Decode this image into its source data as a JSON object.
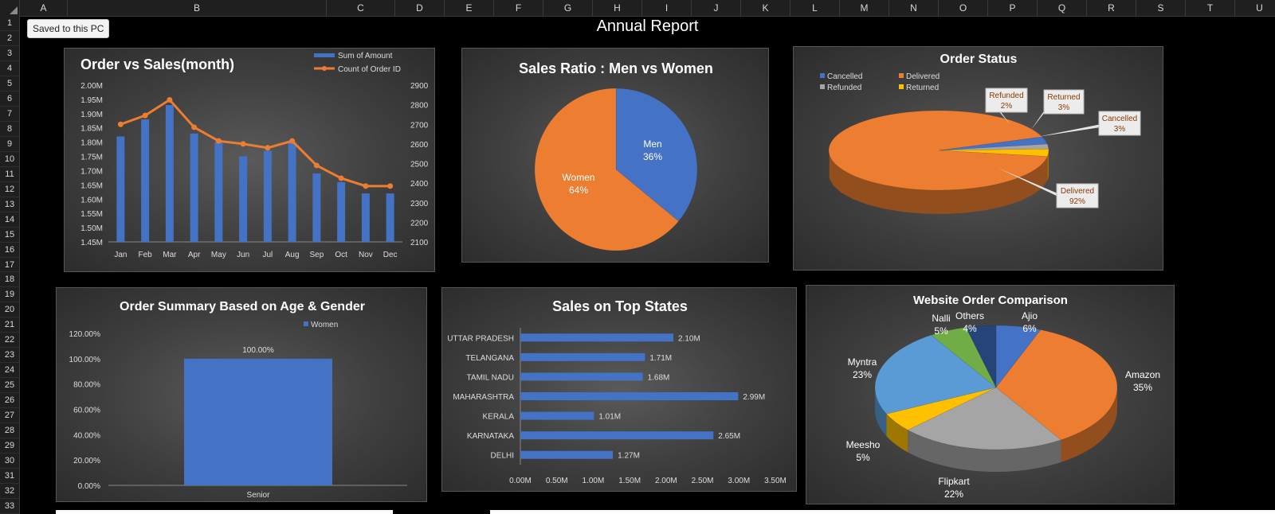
{
  "app": {
    "toast": "Saved to this PC",
    "sheet_title": "Annual Report",
    "columns": [
      "A",
      "B",
      "C",
      "D",
      "E",
      "F",
      "G",
      "H",
      "I",
      "J",
      "K",
      "L",
      "M",
      "N",
      "O",
      "P",
      "Q",
      "R",
      "S",
      "T",
      "U"
    ],
    "rows": [
      "1",
      "2",
      "3",
      "4",
      "5",
      "6",
      "7",
      "8",
      "9",
      "10",
      "11",
      "12",
      "13",
      "14",
      "15",
      "16",
      "17",
      "18",
      "19",
      "20",
      "21",
      "22",
      "23",
      "24",
      "25",
      "26",
      "27",
      "28",
      "29",
      "30",
      "31",
      "32",
      "33"
    ]
  },
  "chart_data": [
    {
      "id": "order-vs-sales",
      "type": "bar+line",
      "title": "Order vs Sales(month)",
      "categories": [
        "Jan",
        "Feb",
        "Mar",
        "Apr",
        "May",
        "Jun",
        "Jul",
        "Aug",
        "Sep",
        "Oct",
        "Nov",
        "Dec"
      ],
      "series": [
        {
          "name": "Sum of Amount",
          "type": "bar",
          "color": "#4472c4",
          "values": [
            1.82,
            1.88,
            1.93,
            1.83,
            1.8,
            1.75,
            1.77,
            1.8,
            1.69,
            1.66,
            1.62,
            1.62
          ]
        },
        {
          "name": "Count of Order ID",
          "type": "line",
          "color": "#ed7d31",
          "values": [
            2700,
            2745,
            2825,
            2685,
            2615,
            2600,
            2580,
            2615,
            2490,
            2425,
            2385,
            2385
          ]
        }
      ],
      "y_ticks": [
        "2.00M",
        "1.95M",
        "1.90M",
        "1.85M",
        "1.80M",
        "1.75M",
        "1.70M",
        "1.65M",
        "1.60M",
        "1.55M",
        "1.50M",
        "1.45M"
      ],
      "ylim": [
        1.45,
        2.0
      ],
      "y2_ticks": [
        "2900",
        "2800",
        "2700",
        "2600",
        "2500",
        "2400",
        "2300",
        "2200",
        "2100"
      ],
      "y2lim": [
        2100,
        2900
      ],
      "legend": "top-right"
    },
    {
      "id": "sales-ratio",
      "type": "pie",
      "title": "Sales Ratio : Men vs Women",
      "slices": [
        {
          "label": "Men",
          "value": 36,
          "text": "36%",
          "color": "#4472c4"
        },
        {
          "label": "Women",
          "value": 64,
          "text": "64%",
          "color": "#ed7d31"
        }
      ]
    },
    {
      "id": "order-status",
      "type": "pie",
      "title": "Order Status",
      "legend_items": [
        "Cancelled",
        "Delivered",
        "Refunded",
        "Returned"
      ],
      "slices": [
        {
          "label": "Cancelled",
          "value": 3,
          "text": "3%",
          "color": "#4472c4"
        },
        {
          "label": "Delivered",
          "value": 92,
          "text": "92%",
          "color": "#ed7d31"
        },
        {
          "label": "Refunded",
          "value": 2,
          "text": "2%",
          "color": "#a5a5a5"
        },
        {
          "label": "Returned",
          "value": 3,
          "text": "3%",
          "color": "#ffc000"
        }
      ],
      "legend": "top-left"
    },
    {
      "id": "age-gender",
      "type": "bar",
      "title": "Order Summary Based on Age & Gender",
      "categories": [
        "Senior"
      ],
      "series": [
        {
          "name": "Women",
          "values": [
            100
          ],
          "color": "#4472c4"
        }
      ],
      "data_labels": [
        "100.00%"
      ],
      "y_ticks": [
        "120.00%",
        "100.00%",
        "80.00%",
        "60.00%",
        "40.00%",
        "20.00%",
        "0.00%"
      ],
      "ylim": [
        0,
        120
      ],
      "legend": "top-right"
    },
    {
      "id": "top-states",
      "type": "bar",
      "orientation": "horizontal",
      "title": "Sales on Top States",
      "categories": [
        "UTTAR PRADESH",
        "TELANGANA",
        "TAMIL NADU",
        "MAHARASHTRA",
        "KERALA",
        "KARNATAKA",
        "DELHI"
      ],
      "values": [
        2.1,
        1.71,
        1.68,
        2.99,
        1.01,
        2.65,
        1.27
      ],
      "data_labels": [
        "2.10M",
        "1.71M",
        "1.68M",
        "2.99M",
        "1.01M",
        "2.65M",
        "1.27M"
      ],
      "x_ticks": [
        "0.00M",
        "0.50M",
        "1.00M",
        "1.50M",
        "2.00M",
        "2.50M",
        "3.00M",
        "3.50M"
      ],
      "xlim": [
        0,
        3.5
      ],
      "color": "#4472c4"
    },
    {
      "id": "website-orders",
      "type": "pie",
      "title": "Website Order Comparison",
      "slices": [
        {
          "label": "Ajio",
          "value": 6,
          "text": "6%",
          "color": "#4472c4"
        },
        {
          "label": "Amazon",
          "value": 35,
          "text": "35%",
          "color": "#ed7d31"
        },
        {
          "label": "Flipkart",
          "value": 22,
          "text": "22%",
          "color": "#a5a5a5"
        },
        {
          "label": "Meesho",
          "value": 5,
          "text": "5%",
          "color": "#ffc000"
        },
        {
          "label": "Myntra",
          "value": 23,
          "text": "23%",
          "color": "#5b9bd5"
        },
        {
          "label": "Nalli",
          "value": 5,
          "text": "5%",
          "color": "#70ad47"
        },
        {
          "label": "Others",
          "value": 4,
          "text": "4%",
          "color": "#264478"
        }
      ]
    }
  ]
}
